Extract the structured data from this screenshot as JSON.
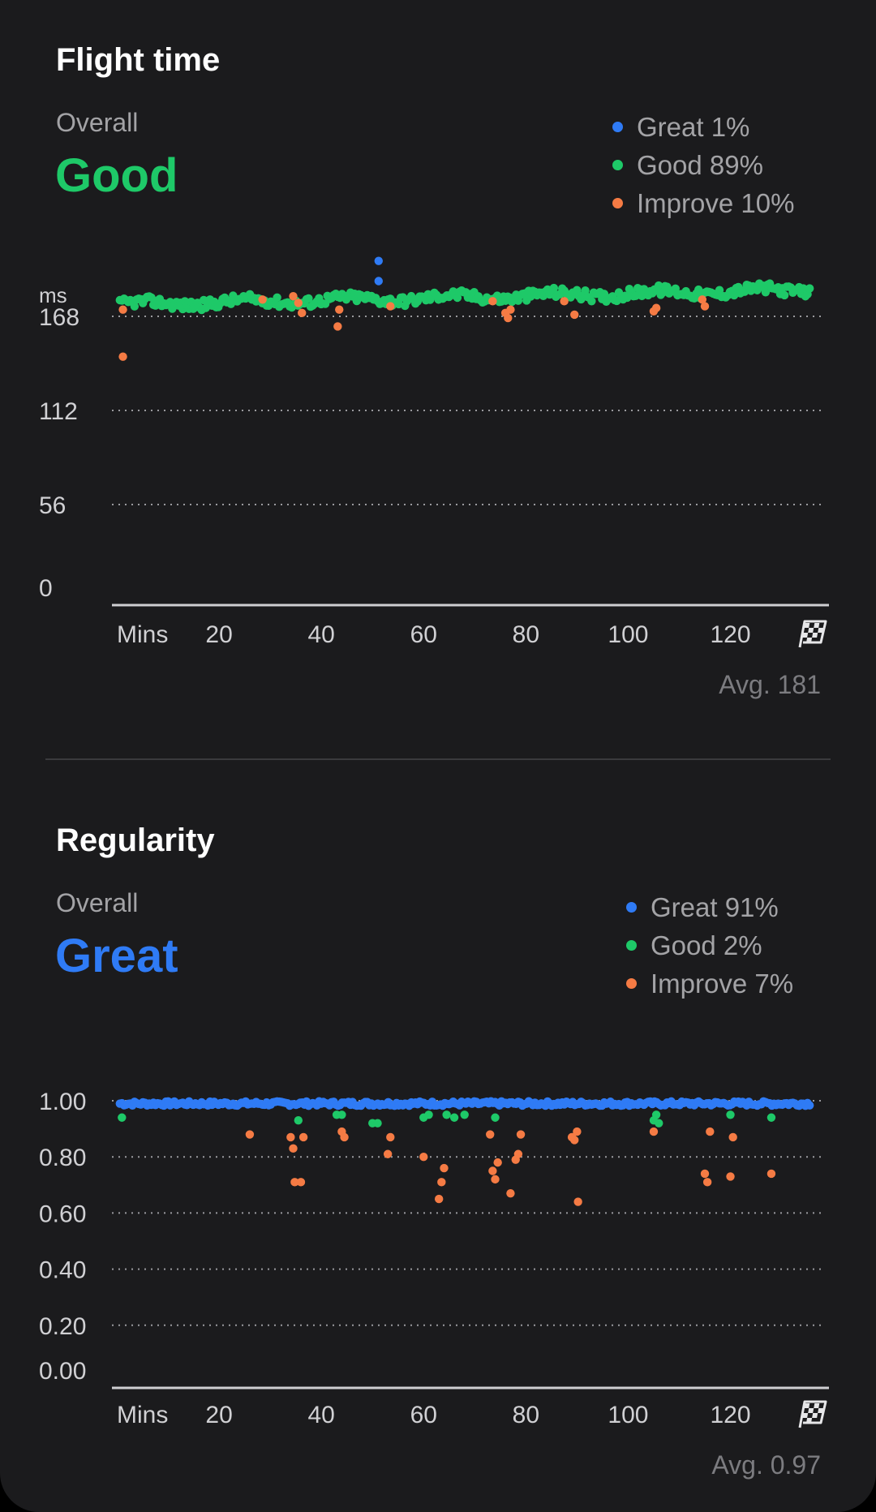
{
  "flight": {
    "title": "Flight time",
    "overall_label": "Overall",
    "overall_value": "Good",
    "overall_color": "#1ec968",
    "legend": [
      {
        "label": "Great 1%",
        "color": "#2f7bf5"
      },
      {
        "label": "Good 89%",
        "color": "#1ec968"
      },
      {
        "label": "Improve 10%",
        "color": "#f57b44"
      }
    ],
    "avg": "Avg. 181"
  },
  "regularity": {
    "title": "Regularity",
    "overall_label": "Overall",
    "overall_value": "Great",
    "overall_color": "#2f7bf5",
    "legend": [
      {
        "label": "Great 91%",
        "color": "#2f7bf5"
      },
      {
        "label": "Good 2%",
        "color": "#1ec968"
      },
      {
        "label": "Improve 7%",
        "color": "#f57b44"
      }
    ],
    "avg": "Avg. 0.97"
  },
  "chart_data": [
    {
      "type": "scatter",
      "title": "Flight time",
      "ylabel": "ms",
      "xlabel": "Mins",
      "ylim": [
        0,
        224
      ],
      "yticks": [
        "168",
        "112",
        "56",
        "0"
      ],
      "ytick_values": [
        168,
        112,
        56,
        0
      ],
      "xticks": [
        "20",
        "40",
        "60",
        "80",
        "100",
        "120"
      ],
      "xtick_values": [
        20,
        40,
        60,
        80,
        100,
        120
      ],
      "xlim": [
        0,
        138
      ],
      "x_start_label": "Mins",
      "finish_icon": "checkered-flag-icon",
      "grid": true,
      "series": [
        {
          "name": "Great",
          "color": "#2f7bf5",
          "points": [
            [
              51.2,
              201
            ],
            [
              51.2,
              189
            ]
          ]
        },
        {
          "name": "Good",
          "color": "#1ec968",
          "points": "dense-band"
        },
        {
          "name": "Improve",
          "color": "#f57b44",
          "points": [
            [
              1.2,
              172
            ],
            [
              1.2,
              144
            ],
            [
              28.5,
              178
            ],
            [
              34.5,
              180
            ],
            [
              35.5,
              176
            ],
            [
              36.2,
              170
            ],
            [
              43.2,
              162
            ],
            [
              43.5,
              172
            ],
            [
              53.5,
              174
            ],
            [
              73.5,
              177
            ],
            [
              76,
              170
            ],
            [
              76.5,
              167
            ],
            [
              77,
              172
            ],
            [
              87.5,
              177
            ],
            [
              89.5,
              169
            ],
            [
              105,
              171
            ],
            [
              105.5,
              173
            ],
            [
              114.5,
              178
            ],
            [
              115,
              174
            ]
          ]
        }
      ],
      "band": {
        "base": 175,
        "drift_to": 184,
        "noise": 3
      }
    },
    {
      "type": "scatter",
      "title": "Regularity",
      "xlabel": "Mins",
      "ylim": [
        0,
        1.0
      ],
      "yticks": [
        "1.00",
        "0.80",
        "0.60",
        "0.40",
        "0.20",
        "0.00"
      ],
      "ytick_values": [
        1.0,
        0.8,
        0.6,
        0.4,
        0.2,
        0.0
      ],
      "xticks": [
        "20",
        "40",
        "60",
        "80",
        "100",
        "120"
      ],
      "xtick_values": [
        20,
        40,
        60,
        80,
        100,
        120
      ],
      "xlim": [
        0,
        138
      ],
      "x_start_label": "Mins",
      "finish_icon": "checkered-flag-icon",
      "grid": true,
      "series": [
        {
          "name": "Great",
          "color": "#2f7bf5",
          "points": "dense-band"
        },
        {
          "name": "Good",
          "color": "#1ec968",
          "points": [
            [
              1,
              0.94
            ],
            [
              35.5,
              0.93
            ],
            [
              43,
              0.95
            ],
            [
              44,
              0.95
            ],
            [
              50,
              0.92
            ],
            [
              51,
              0.92
            ],
            [
              60,
              0.94
            ],
            [
              61,
              0.95
            ],
            [
              64.5,
              0.95
            ],
            [
              66,
              0.94
            ],
            [
              68,
              0.95
            ],
            [
              74,
              0.94
            ],
            [
              105,
              0.93
            ],
            [
              105.5,
              0.95
            ],
            [
              106,
              0.92
            ],
            [
              120,
              0.95
            ],
            [
              128,
              0.94
            ]
          ]
        },
        {
          "name": "Improve",
          "color": "#f57b44",
          "points": [
            [
              26,
              0.88
            ],
            [
              34,
              0.87
            ],
            [
              34.5,
              0.83
            ],
            [
              34.8,
              0.71
            ],
            [
              36,
              0.71
            ],
            [
              36.5,
              0.87
            ],
            [
              44,
              0.89
            ],
            [
              44.5,
              0.87
            ],
            [
              53,
              0.81
            ],
            [
              53.5,
              0.87
            ],
            [
              60,
              0.8
            ],
            [
              63,
              0.65
            ],
            [
              63.5,
              0.71
            ],
            [
              64,
              0.76
            ],
            [
              73,
              0.88
            ],
            [
              73.5,
              0.75
            ],
            [
              74,
              0.72
            ],
            [
              74.5,
              0.78
            ],
            [
              77,
              0.67
            ],
            [
              78,
              0.79
            ],
            [
              78.5,
              0.81
            ],
            [
              79,
              0.88
            ],
            [
              89,
              0.87
            ],
            [
              89.5,
              0.86
            ],
            [
              90,
              0.89
            ],
            [
              90.2,
              0.64
            ],
            [
              105,
              0.89
            ],
            [
              115,
              0.74
            ],
            [
              115.5,
              0.71
            ],
            [
              116,
              0.89
            ],
            [
              120,
              0.73
            ],
            [
              120.5,
              0.87
            ],
            [
              128,
              0.74
            ]
          ]
        }
      ],
      "band": {
        "base": 0.99,
        "noise": 0.008
      }
    }
  ]
}
